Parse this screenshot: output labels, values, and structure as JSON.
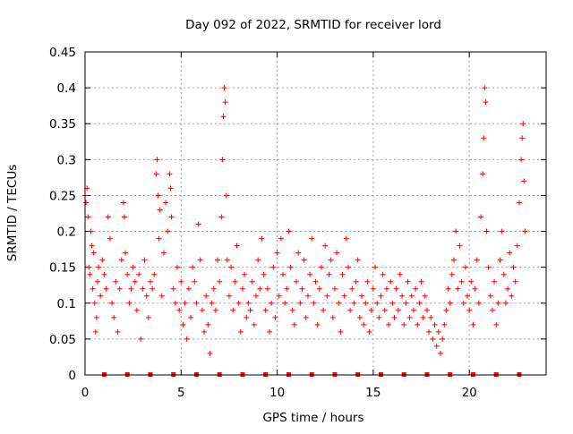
{
  "chart_data": {
    "type": "scatter",
    "title": "Day 092 of 2022, SRMTID for receiver lord",
    "xlabel": "GPS time / hours",
    "ylabel": "SRMTID / TECUs",
    "xlim": [
      0,
      24
    ],
    "ylim": [
      0,
      0.45
    ],
    "xticks": [
      0,
      5,
      10,
      15,
      20
    ],
    "yticks": [
      0,
      0.05,
      0.1,
      0.15,
      0.2,
      0.25,
      0.3,
      0.35,
      0.4,
      0.45
    ],
    "xtick_labels": [
      "0",
      "5",
      "10",
      "15",
      "20"
    ],
    "ytick_labels": [
      "0",
      "0.05",
      "0.1",
      "0.15",
      "0.2",
      "0.25",
      "0.3",
      "0.35",
      "0.4",
      "0.45"
    ],
    "grid": true,
    "marker": "+",
    "color": "#ff0000",
    "series": [
      {
        "name": "SRMTID",
        "points": [
          [
            0.0,
            0.25
          ],
          [
            0.05,
            0.24
          ],
          [
            0.1,
            0.26
          ],
          [
            0.15,
            0.22
          ],
          [
            0.2,
            0.15
          ],
          [
            0.25,
            0.14
          ],
          [
            0.3,
            0.2
          ],
          [
            0.35,
            0.18
          ],
          [
            0.4,
            0.12
          ],
          [
            0.45,
            0.17
          ],
          [
            0.5,
            0.1
          ],
          [
            0.55,
            0.06
          ],
          [
            0.6,
            0.08
          ],
          [
            0.65,
            0.13
          ],
          [
            0.7,
            0.15
          ],
          [
            0.8,
            0.11
          ],
          [
            0.9,
            0.16
          ],
          [
            1.0,
            0.14
          ],
          [
            1.1,
            0.12
          ],
          [
            1.2,
            0.22
          ],
          [
            1.3,
            0.19
          ],
          [
            1.4,
            0.1
          ],
          [
            1.5,
            0.08
          ],
          [
            1.6,
            0.13
          ],
          [
            1.7,
            0.06
          ],
          [
            1.8,
            0.12
          ],
          [
            1.9,
            0.16
          ],
          [
            2.0,
            0.24
          ],
          [
            2.05,
            0.22
          ],
          [
            2.1,
            0.17
          ],
          [
            2.2,
            0.14
          ],
          [
            2.3,
            0.1
          ],
          [
            2.4,
            0.12
          ],
          [
            2.5,
            0.15
          ],
          [
            2.6,
            0.13
          ],
          [
            2.7,
            0.09
          ],
          [
            2.8,
            0.14
          ],
          [
            2.9,
            0.05
          ],
          [
            3.0,
            0.12
          ],
          [
            3.1,
            0.16
          ],
          [
            3.2,
            0.11
          ],
          [
            3.3,
            0.08
          ],
          [
            3.4,
            0.13
          ],
          [
            3.5,
            0.12
          ],
          [
            3.6,
            0.14
          ],
          [
            3.7,
            0.28
          ],
          [
            3.75,
            0.3
          ],
          [
            3.8,
            0.25
          ],
          [
            3.85,
            0.19
          ],
          [
            3.9,
            0.23
          ],
          [
            4.0,
            0.11
          ],
          [
            4.1,
            0.17
          ],
          [
            4.2,
            0.24
          ],
          [
            4.3,
            0.2
          ],
          [
            4.4,
            0.28
          ],
          [
            4.45,
            0.26
          ],
          [
            4.5,
            0.22
          ],
          [
            4.6,
            0.12
          ],
          [
            4.7,
            0.1
          ],
          [
            4.8,
            0.15
          ],
          [
            4.9,
            0.09
          ],
          [
            5.0,
            0.13
          ],
          [
            5.1,
            0.07
          ],
          [
            5.2,
            0.1
          ],
          [
            5.3,
            0.05
          ],
          [
            5.4,
            0.12
          ],
          [
            5.5,
            0.08
          ],
          [
            5.6,
            0.15
          ],
          [
            5.7,
            0.13
          ],
          [
            5.8,
            0.1
          ],
          [
            5.9,
            0.21
          ],
          [
            6.0,
            0.16
          ],
          [
            6.1,
            0.09
          ],
          [
            6.2,
            0.06
          ],
          [
            6.3,
            0.11
          ],
          [
            6.4,
            0.07
          ],
          [
            6.5,
            0.03
          ],
          [
            6.6,
            0.1
          ],
          [
            6.7,
            0.12
          ],
          [
            6.8,
            0.09
          ],
          [
            6.9,
            0.16
          ],
          [
            7.0,
            0.13
          ],
          [
            7.1,
            0.22
          ],
          [
            7.15,
            0.3
          ],
          [
            7.2,
            0.36
          ],
          [
            7.25,
            0.4
          ],
          [
            7.3,
            0.38
          ],
          [
            7.35,
            0.25
          ],
          [
            7.4,
            0.16
          ],
          [
            7.5,
            0.11
          ],
          [
            7.6,
            0.15
          ],
          [
            7.7,
            0.09
          ],
          [
            7.8,
            0.13
          ],
          [
            7.9,
            0.18
          ],
          [
            8.0,
            0.1
          ],
          [
            8.1,
            0.06
          ],
          [
            8.2,
            0.12
          ],
          [
            8.3,
            0.14
          ],
          [
            8.4,
            0.08
          ],
          [
            8.5,
            0.1
          ],
          [
            8.6,
            0.09
          ],
          [
            8.7,
            0.13
          ],
          [
            8.8,
            0.07
          ],
          [
            8.9,
            0.11
          ],
          [
            9.0,
            0.16
          ],
          [
            9.1,
            0.12
          ],
          [
            9.2,
            0.19
          ],
          [
            9.3,
            0.14
          ],
          [
            9.4,
            0.09
          ],
          [
            9.5,
            0.12
          ],
          [
            9.6,
            0.06
          ],
          [
            9.7,
            0.1
          ],
          [
            9.8,
            0.15
          ],
          [
            9.9,
            0.08
          ],
          [
            10.0,
            0.17
          ],
          [
            10.1,
            0.11
          ],
          [
            10.2,
            0.19
          ],
          [
            10.3,
            0.14
          ],
          [
            10.4,
            0.1
          ],
          [
            10.5,
            0.12
          ],
          [
            10.6,
            0.2
          ],
          [
            10.7,
            0.15
          ],
          [
            10.8,
            0.09
          ],
          [
            10.9,
            0.07
          ],
          [
            11.0,
            0.13
          ],
          [
            11.1,
            0.17
          ],
          [
            11.2,
            0.1
          ],
          [
            11.3,
            0.12
          ],
          [
            11.4,
            0.16
          ],
          [
            11.5,
            0.08
          ],
          [
            11.6,
            0.11
          ],
          [
            11.7,
            0.14
          ],
          [
            11.8,
            0.19
          ],
          [
            11.9,
            0.1
          ],
          [
            12.0,
            0.13
          ],
          [
            12.1,
            0.07
          ],
          [
            12.2,
            0.12
          ],
          [
            12.3,
            0.15
          ],
          [
            12.4,
            0.09
          ],
          [
            12.5,
            0.18
          ],
          [
            12.6,
            0.11
          ],
          [
            12.7,
            0.14
          ],
          [
            12.8,
            0.16
          ],
          [
            12.9,
            0.08
          ],
          [
            13.0,
            0.12
          ],
          [
            13.1,
            0.17
          ],
          [
            13.2,
            0.1
          ],
          [
            13.3,
            0.06
          ],
          [
            13.4,
            0.14
          ],
          [
            13.5,
            0.11
          ],
          [
            13.6,
            0.19
          ],
          [
            13.7,
            0.15
          ],
          [
            13.8,
            0.09
          ],
          [
            13.9,
            0.12
          ],
          [
            14.0,
            0.1
          ],
          [
            14.1,
            0.13
          ],
          [
            14.2,
            0.16
          ],
          [
            14.3,
            0.08
          ],
          [
            14.4,
            0.11
          ],
          [
            14.5,
            0.07
          ],
          [
            14.6,
            0.1
          ],
          [
            14.7,
            0.13
          ],
          [
            14.8,
            0.06
          ],
          [
            14.9,
            0.09
          ],
          [
            15.0,
            0.12
          ],
          [
            15.1,
            0.15
          ],
          [
            15.2,
            0.1
          ],
          [
            15.3,
            0.08
          ],
          [
            15.4,
            0.11
          ],
          [
            15.5,
            0.14
          ],
          [
            15.6,
            0.09
          ],
          [
            15.7,
            0.12
          ],
          [
            15.8,
            0.07
          ],
          [
            15.9,
            0.13
          ],
          [
            16.0,
            0.1
          ],
          [
            16.1,
            0.08
          ],
          [
            16.2,
            0.12
          ],
          [
            16.3,
            0.09
          ],
          [
            16.4,
            0.14
          ],
          [
            16.5,
            0.11
          ],
          [
            16.6,
            0.07
          ],
          [
            16.7,
            0.1
          ],
          [
            16.8,
            0.13
          ],
          [
            16.9,
            0.08
          ],
          [
            17.0,
            0.11
          ],
          [
            17.1,
            0.09
          ],
          [
            17.2,
            0.12
          ],
          [
            17.3,
            0.07
          ],
          [
            17.4,
            0.1
          ],
          [
            17.5,
            0.13
          ],
          [
            17.6,
            0.08
          ],
          [
            17.7,
            0.11
          ],
          [
            17.8,
            0.09
          ],
          [
            17.9,
            0.06
          ],
          [
            18.0,
            0.08
          ],
          [
            18.1,
            0.05
          ],
          [
            18.2,
            0.07
          ],
          [
            18.3,
            0.04
          ],
          [
            18.4,
            0.06
          ],
          [
            18.5,
            0.03
          ],
          [
            18.6,
            0.05
          ],
          [
            18.7,
            0.07
          ],
          [
            18.8,
            0.09
          ],
          [
            18.9,
            0.12
          ],
          [
            19.0,
            0.1
          ],
          [
            19.1,
            0.14
          ],
          [
            19.2,
            0.16
          ],
          [
            19.3,
            0.2
          ],
          [
            19.4,
            0.12
          ],
          [
            19.5,
            0.18
          ],
          [
            19.6,
            0.13
          ],
          [
            19.7,
            0.1
          ],
          [
            19.8,
            0.15
          ],
          [
            19.9,
            0.11
          ],
          [
            20.0,
            0.09
          ],
          [
            20.1,
            0.13
          ],
          [
            20.2,
            0.07
          ],
          [
            20.3,
            0.12
          ],
          [
            20.4,
            0.16
          ],
          [
            20.5,
            0.1
          ],
          [
            20.6,
            0.22
          ],
          [
            20.7,
            0.28
          ],
          [
            20.75,
            0.33
          ],
          [
            20.8,
            0.4
          ],
          [
            20.85,
            0.38
          ],
          [
            20.9,
            0.2
          ],
          [
            21.0,
            0.15
          ],
          [
            21.1,
            0.11
          ],
          [
            21.2,
            0.09
          ],
          [
            21.3,
            0.13
          ],
          [
            21.4,
            0.07
          ],
          [
            21.5,
            0.1
          ],
          [
            21.6,
            0.16
          ],
          [
            21.7,
            0.2
          ],
          [
            21.8,
            0.14
          ],
          [
            21.9,
            0.1
          ],
          [
            22.0,
            0.12
          ],
          [
            22.1,
            0.17
          ],
          [
            22.2,
            0.11
          ],
          [
            22.3,
            0.15
          ],
          [
            22.4,
            0.13
          ],
          [
            22.5,
            0.18
          ],
          [
            22.6,
            0.24
          ],
          [
            22.7,
            0.3
          ],
          [
            22.75,
            0.33
          ],
          [
            22.8,
            0.35
          ],
          [
            22.85,
            0.27
          ],
          [
            22.9,
            0.2
          ]
        ]
      }
    ],
    "ground_markers": [
      1.0,
      2.2,
      3.4,
      4.6,
      5.8,
      7.0,
      8.2,
      9.4,
      10.6,
      11.8,
      13.0,
      14.2,
      15.4,
      16.6,
      17.8,
      19.0,
      20.2,
      21.4,
      22.6
    ]
  }
}
